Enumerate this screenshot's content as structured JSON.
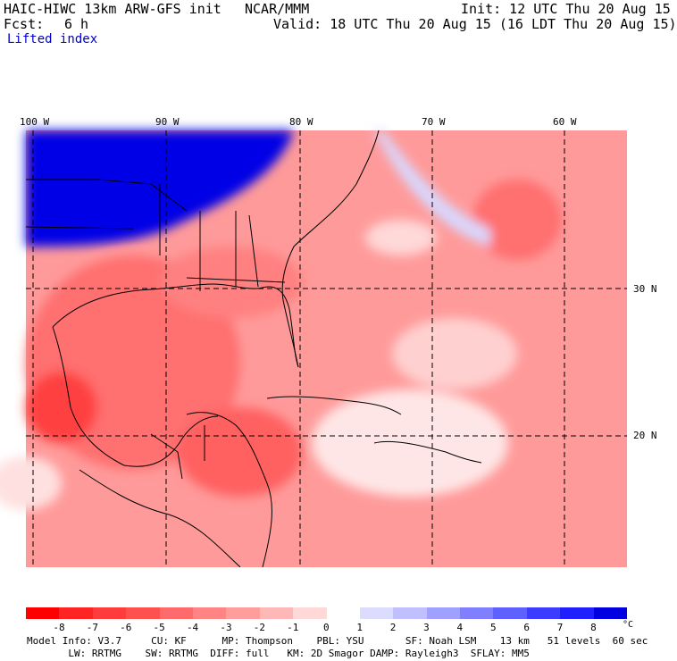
{
  "header": {
    "model": "HAIC-HIWC 13km ARW-GFS init",
    "center": "NCAR/MMM",
    "init": "Init: 12 UTC Thu 20 Aug 15",
    "fcst_label": "Fcst:",
    "fcst_value": "6 h",
    "valid": "Valid: 18 UTC Thu 20 Aug 15 (16 LDT Thu 20 Aug 15)",
    "variable": "Lifted index"
  },
  "lon_labels": [
    "100 W",
    "90 W",
    "80 W",
    "70 W",
    "60 W"
  ],
  "lat_labels": [
    "30 N",
    "20 N"
  ],
  "colorbar": {
    "labels": [
      "-8",
      "-7",
      "-6",
      "-5",
      "-4",
      "-3",
      "-2",
      "-1",
      "0",
      "1",
      "2",
      "3",
      "4",
      "5",
      "6",
      "7",
      "8"
    ],
    "unit": "°C",
    "colors": [
      "#ff0000",
      "#ff2424",
      "#ff3c3c",
      "#ff5050",
      "#ff6a6a",
      "#ff8484",
      "#ff9c9c",
      "#ffb8b8",
      "#ffd8d8",
      "#ffffff",
      "#dcdcff",
      "#c0c0ff",
      "#a0a0ff",
      "#8080ff",
      "#6060ff",
      "#3c3cff",
      "#2020ff",
      "#0000e0"
    ]
  },
  "model_info": {
    "line1": "Model Info: V3.7     CU: KF      MP: Thompson    PBL: YSU       SF: Noah LSM    13 km   51 levels  60 sec",
    "line2": "       LW: RRTMG    SW: RRTMG  DIFF: full   KM: 2D Smagor DAMP: Rayleigh3  SFLAY: MM5"
  },
  "map_colors": {
    "cold": "#0000e6",
    "neutral": "#fff0f0",
    "warm": "#ff7f7f",
    "strong": "#ff3030",
    "light": "#ffc4c4"
  }
}
